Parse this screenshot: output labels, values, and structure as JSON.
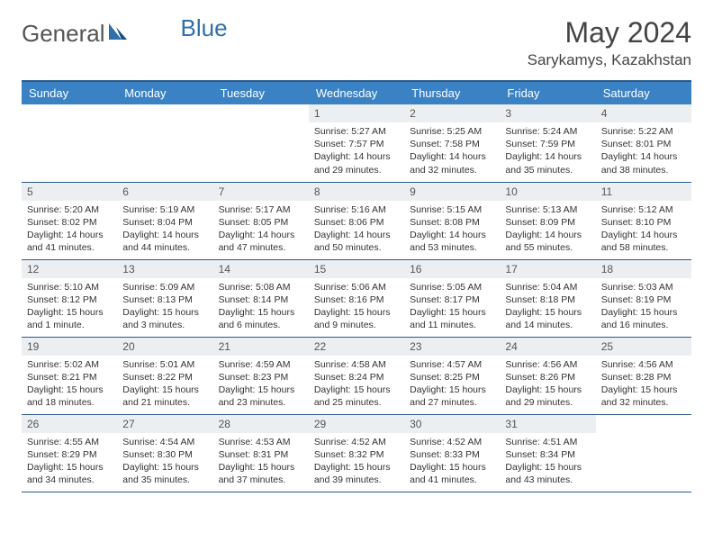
{
  "logo": {
    "text1": "General",
    "text2": "Blue",
    "color1": "#6b6b6b",
    "color2": "#2f6fab"
  },
  "title": "May 2024",
  "location": "Sarykamys, Kazakhstan",
  "header_bg": "#3b82c4",
  "header_border": "#2a5a8a",
  "daynum_bg": "#eceff1",
  "weekdays": [
    "Sunday",
    "Monday",
    "Tuesday",
    "Wednesday",
    "Thursday",
    "Friday",
    "Saturday"
  ],
  "weeks": [
    [
      null,
      null,
      null,
      {
        "n": "1",
        "sr": "5:27 AM",
        "ss": "7:57 PM",
        "dl": "14 hours and 29 minutes."
      },
      {
        "n": "2",
        "sr": "5:25 AM",
        "ss": "7:58 PM",
        "dl": "14 hours and 32 minutes."
      },
      {
        "n": "3",
        "sr": "5:24 AM",
        "ss": "7:59 PM",
        "dl": "14 hours and 35 minutes."
      },
      {
        "n": "4",
        "sr": "5:22 AM",
        "ss": "8:01 PM",
        "dl": "14 hours and 38 minutes."
      }
    ],
    [
      {
        "n": "5",
        "sr": "5:20 AM",
        "ss": "8:02 PM",
        "dl": "14 hours and 41 minutes."
      },
      {
        "n": "6",
        "sr": "5:19 AM",
        "ss": "8:04 PM",
        "dl": "14 hours and 44 minutes."
      },
      {
        "n": "7",
        "sr": "5:17 AM",
        "ss": "8:05 PM",
        "dl": "14 hours and 47 minutes."
      },
      {
        "n": "8",
        "sr": "5:16 AM",
        "ss": "8:06 PM",
        "dl": "14 hours and 50 minutes."
      },
      {
        "n": "9",
        "sr": "5:15 AM",
        "ss": "8:08 PM",
        "dl": "14 hours and 53 minutes."
      },
      {
        "n": "10",
        "sr": "5:13 AM",
        "ss": "8:09 PM",
        "dl": "14 hours and 55 minutes."
      },
      {
        "n": "11",
        "sr": "5:12 AM",
        "ss": "8:10 PM",
        "dl": "14 hours and 58 minutes."
      }
    ],
    [
      {
        "n": "12",
        "sr": "5:10 AM",
        "ss": "8:12 PM",
        "dl": "15 hours and 1 minute."
      },
      {
        "n": "13",
        "sr": "5:09 AM",
        "ss": "8:13 PM",
        "dl": "15 hours and 3 minutes."
      },
      {
        "n": "14",
        "sr": "5:08 AM",
        "ss": "8:14 PM",
        "dl": "15 hours and 6 minutes."
      },
      {
        "n": "15",
        "sr": "5:06 AM",
        "ss": "8:16 PM",
        "dl": "15 hours and 9 minutes."
      },
      {
        "n": "16",
        "sr": "5:05 AM",
        "ss": "8:17 PM",
        "dl": "15 hours and 11 minutes."
      },
      {
        "n": "17",
        "sr": "5:04 AM",
        "ss": "8:18 PM",
        "dl": "15 hours and 14 minutes."
      },
      {
        "n": "18",
        "sr": "5:03 AM",
        "ss": "8:19 PM",
        "dl": "15 hours and 16 minutes."
      }
    ],
    [
      {
        "n": "19",
        "sr": "5:02 AM",
        "ss": "8:21 PM",
        "dl": "15 hours and 18 minutes."
      },
      {
        "n": "20",
        "sr": "5:01 AM",
        "ss": "8:22 PM",
        "dl": "15 hours and 21 minutes."
      },
      {
        "n": "21",
        "sr": "4:59 AM",
        "ss": "8:23 PM",
        "dl": "15 hours and 23 minutes."
      },
      {
        "n": "22",
        "sr": "4:58 AM",
        "ss": "8:24 PM",
        "dl": "15 hours and 25 minutes."
      },
      {
        "n": "23",
        "sr": "4:57 AM",
        "ss": "8:25 PM",
        "dl": "15 hours and 27 minutes."
      },
      {
        "n": "24",
        "sr": "4:56 AM",
        "ss": "8:26 PM",
        "dl": "15 hours and 29 minutes."
      },
      {
        "n": "25",
        "sr": "4:56 AM",
        "ss": "8:28 PM",
        "dl": "15 hours and 32 minutes."
      }
    ],
    [
      {
        "n": "26",
        "sr": "4:55 AM",
        "ss": "8:29 PM",
        "dl": "15 hours and 34 minutes."
      },
      {
        "n": "27",
        "sr": "4:54 AM",
        "ss": "8:30 PM",
        "dl": "15 hours and 35 minutes."
      },
      {
        "n": "28",
        "sr": "4:53 AM",
        "ss": "8:31 PM",
        "dl": "15 hours and 37 minutes."
      },
      {
        "n": "29",
        "sr": "4:52 AM",
        "ss": "8:32 PM",
        "dl": "15 hours and 39 minutes."
      },
      {
        "n": "30",
        "sr": "4:52 AM",
        "ss": "8:33 PM",
        "dl": "15 hours and 41 minutes."
      },
      {
        "n": "31",
        "sr": "4:51 AM",
        "ss": "8:34 PM",
        "dl": "15 hours and 43 minutes."
      },
      null
    ]
  ],
  "labels": {
    "sunrise": "Sunrise:",
    "sunset": "Sunset:",
    "daylight": "Daylight:"
  }
}
